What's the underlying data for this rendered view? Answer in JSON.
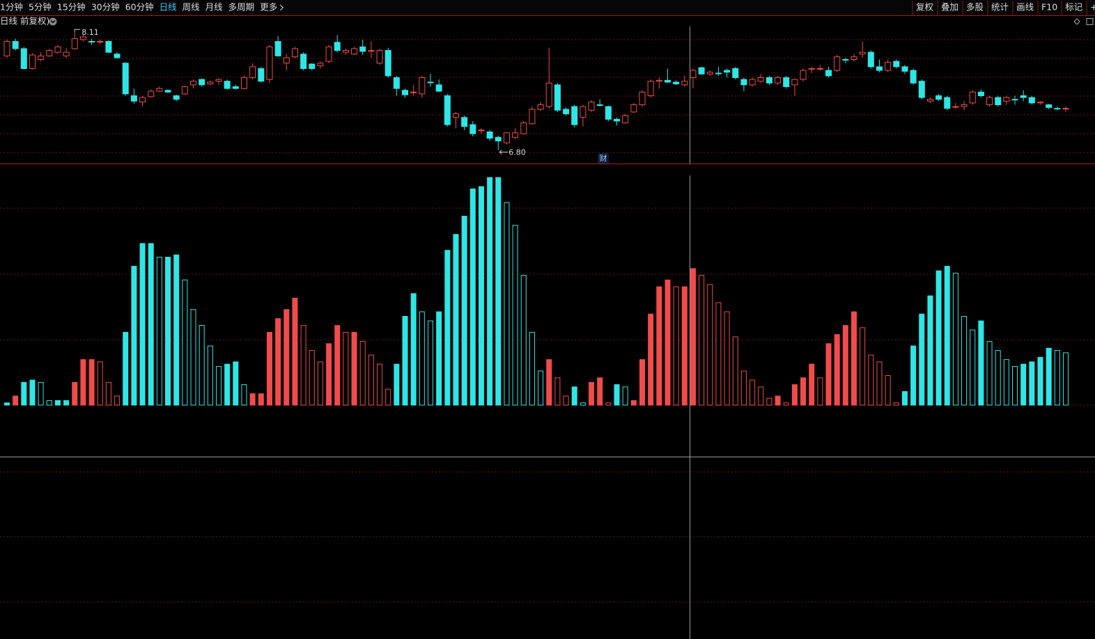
{
  "toolbar": {
    "left": [
      "1分钟",
      "5分钟",
      "15分钟",
      "30分钟",
      "60分钟",
      "日线",
      "周线",
      "月线",
      "多周期",
      "更多"
    ],
    "right": [
      "复权",
      "叠加",
      "多股",
      "统计",
      "画线",
      "F10",
      "标记",
      "+自"
    ]
  },
  "subtitle": "日线 前复权)",
  "marker": "财",
  "chart_data": [
    {
      "type": "candlestick",
      "ylim": [
        6.65,
        8.15
      ],
      "high_label": "8.11",
      "low_label": "6.80",
      "color_up": "#f24b4b",
      "color_down": "#2ee6e6",
      "open": [
        7.84,
        8.0,
        7.92,
        7.7,
        7.8,
        7.84,
        7.88,
        7.84,
        7.92,
        8.02,
        8.0,
        8.0,
        8.0,
        7.86,
        7.76,
        7.4,
        7.33,
        7.39,
        7.45,
        7.46,
        7.4,
        7.42,
        7.52,
        7.58,
        7.53,
        7.56,
        7.56,
        7.5,
        7.48,
        7.6,
        7.7,
        7.58,
        8.0,
        7.76,
        7.83,
        7.86,
        7.75,
        7.73,
        7.78,
        7.99,
        7.88,
        7.86,
        7.94,
        7.89,
        7.76,
        7.9,
        7.6,
        7.46,
        7.44,
        7.42,
        7.55,
        7.52,
        7.4,
        7.16,
        7.16,
        7.08,
        7.02,
        7.0,
        6.94,
        6.88,
        6.94,
        6.98,
        7.09,
        7.25,
        7.28,
        7.52,
        7.25,
        7.28,
        7.16,
        7.24,
        7.3,
        7.28,
        7.14,
        7.1,
        7.22,
        7.3,
        7.4,
        7.56,
        7.57,
        7.55,
        7.52,
        7.6,
        7.71,
        7.64,
        7.65,
        7.68,
        7.7,
        7.58,
        7.52,
        7.56,
        7.6,
        7.54,
        7.6,
        7.52,
        7.58,
        7.69,
        7.7,
        7.68,
        7.68,
        7.8,
        7.8,
        7.86,
        7.88,
        7.72,
        7.68,
        7.78,
        7.72,
        7.68,
        7.56,
        7.34,
        7.4,
        7.38,
        7.28,
        7.28,
        7.32,
        7.44,
        7.3,
        7.38,
        7.34,
        7.36,
        7.4,
        7.38,
        7.32,
        7.3,
        7.26,
        7.26
      ],
      "close": [
        8.0,
        7.92,
        7.7,
        7.85,
        7.84,
        7.9,
        7.94,
        7.88,
        8.03,
        8.05,
        8.0,
        8.0,
        7.88,
        7.82,
        7.42,
        7.34,
        7.38,
        7.45,
        7.48,
        7.44,
        7.36,
        7.5,
        7.56,
        7.52,
        7.55,
        7.58,
        7.48,
        7.48,
        7.6,
        7.72,
        7.56,
        7.94,
        7.84,
        7.82,
        7.92,
        7.7,
        7.7,
        7.76,
        7.94,
        7.9,
        7.9,
        7.92,
        7.89,
        7.9,
        7.9,
        7.62,
        7.48,
        7.41,
        7.44,
        7.6,
        7.55,
        7.45,
        7.08,
        7.2,
        7.06,
        6.98,
        7.02,
        6.93,
        6.9,
        6.99,
        6.99,
        7.1,
        7.25,
        7.3,
        7.54,
        7.24,
        7.2,
        7.08,
        7.28,
        7.33,
        7.3,
        7.14,
        7.12,
        7.18,
        7.3,
        7.44,
        7.56,
        7.57,
        7.55,
        7.53,
        7.56,
        7.68,
        7.64,
        7.66,
        7.65,
        7.66,
        7.6,
        7.52,
        7.58,
        7.6,
        7.54,
        7.6,
        7.5,
        7.58,
        7.68,
        7.7,
        7.7,
        7.62,
        7.83,
        7.8,
        7.83,
        7.88,
        7.72,
        7.68,
        7.77,
        7.72,
        7.67,
        7.54,
        7.38,
        7.36,
        7.36,
        7.26,
        7.28,
        7.3,
        7.44,
        7.4,
        7.38,
        7.3,
        7.38,
        7.36,
        7.38,
        7.32,
        7.33,
        7.27,
        7.26,
        7.26
      ],
      "high": [
        8.02,
        8.03,
        7.94,
        7.87,
        7.88,
        7.92,
        7.96,
        7.93,
        8.11,
        8.08,
        8.03,
        8.02,
        8.01,
        7.88,
        7.77,
        7.48,
        7.4,
        7.47,
        7.5,
        7.47,
        7.41,
        7.51,
        7.58,
        7.59,
        7.57,
        7.59,
        7.58,
        7.52,
        7.62,
        7.76,
        7.72,
        7.96,
        8.06,
        7.86,
        7.94,
        7.88,
        7.76,
        7.78,
        7.96,
        8.07,
        7.92,
        7.94,
        8.02,
        8.0,
        7.92,
        7.93,
        7.62,
        7.48,
        7.52,
        7.62,
        7.64,
        7.58,
        7.42,
        7.22,
        7.18,
        7.12,
        7.04,
        7.02,
        6.96,
        7.0,
        7.04,
        7.12,
        7.28,
        7.33,
        7.93,
        7.54,
        7.27,
        7.3,
        7.3,
        7.35,
        7.36,
        7.29,
        7.16,
        7.2,
        7.32,
        7.46,
        7.58,
        7.6,
        7.7,
        7.57,
        7.62,
        7.7,
        7.72,
        7.68,
        7.72,
        7.7,
        7.72,
        7.6,
        7.6,
        7.64,
        7.62,
        7.62,
        7.62,
        7.59,
        7.7,
        7.72,
        7.74,
        7.72,
        7.85,
        7.82,
        7.86,
        8.0,
        7.9,
        7.8,
        7.8,
        7.8,
        7.74,
        7.7,
        7.58,
        7.38,
        7.42,
        7.4,
        7.32,
        7.34,
        7.46,
        7.47,
        7.4,
        7.4,
        7.4,
        7.4,
        7.46,
        7.4,
        7.34,
        7.31,
        7.28,
        7.28
      ],
      "low": [
        7.82,
        7.9,
        7.69,
        7.69,
        7.78,
        7.83,
        7.86,
        7.82,
        7.91,
        8.0,
        7.96,
        7.97,
        7.87,
        7.81,
        7.4,
        7.31,
        7.28,
        7.38,
        7.44,
        7.43,
        7.34,
        7.41,
        7.48,
        7.5,
        7.52,
        7.52,
        7.47,
        7.47,
        7.47,
        7.58,
        7.55,
        7.54,
        7.83,
        7.68,
        7.81,
        7.68,
        7.68,
        7.7,
        7.76,
        7.88,
        7.85,
        7.85,
        7.85,
        7.82,
        7.74,
        7.6,
        7.4,
        7.38,
        7.4,
        7.38,
        7.5,
        7.44,
        7.06,
        7.04,
        7.02,
        6.95,
        6.98,
        6.9,
        6.8,
        6.86,
        6.92,
        6.97,
        7.08,
        7.23,
        7.26,
        7.22,
        7.18,
        7.05,
        7.06,
        7.22,
        7.28,
        7.12,
        7.07,
        7.09,
        7.21,
        7.28,
        7.38,
        7.48,
        7.54,
        7.52,
        7.5,
        7.48,
        7.63,
        7.62,
        7.62,
        7.6,
        7.58,
        7.45,
        7.5,
        7.54,
        7.52,
        7.52,
        7.48,
        7.4,
        7.56,
        7.65,
        7.68,
        7.6,
        7.66,
        7.76,
        7.78,
        7.82,
        7.7,
        7.66,
        7.66,
        7.7,
        7.64,
        7.52,
        7.36,
        7.32,
        7.34,
        7.24,
        7.26,
        7.24,
        7.3,
        7.38,
        7.28,
        7.28,
        7.3,
        7.3,
        7.34,
        7.3,
        7.3,
        7.25,
        7.24,
        7.22
      ]
    },
    {
      "type": "bar",
      "ylim": [
        0,
        100
      ],
      "values": [
        1,
        4,
        10,
        11,
        10,
        2,
        2,
        2,
        10,
        20,
        20,
        19,
        10,
        4,
        32,
        61,
        71,
        71,
        65,
        65,
        66,
        55,
        42,
        35,
        26,
        17,
        18,
        19,
        9,
        5,
        5,
        32,
        38,
        42,
        47,
        35,
        24,
        19,
        27,
        35,
        32,
        32,
        28,
        22,
        18,
        7,
        18,
        39,
        49,
        41,
        37,
        41,
        68,
        75,
        83,
        95,
        96,
        100,
        100,
        89,
        79,
        57,
        32,
        15,
        20,
        12,
        4,
        8,
        1,
        10,
        12,
        1,
        9,
        8,
        2,
        20,
        40,
        52,
        55,
        52,
        52,
        60,
        57,
        53,
        45,
        41,
        30,
        15,
        11,
        8,
        3,
        4,
        1,
        9,
        12,
        18,
        12,
        27,
        31,
        35,
        41,
        34,
        22,
        19,
        13,
        1,
        6,
        26,
        40,
        48,
        59,
        61,
        58,
        39,
        33,
        37,
        28,
        24,
        20,
        17,
        18,
        19,
        21,
        25,
        24,
        23
      ],
      "colors": [
        "#2ee6e6",
        "#f24b4b",
        "#2ee6e6",
        "#2ee6e6",
        "#2ee6e6",
        "#2ee6e6",
        "#2ee6e6",
        "#2ee6e6",
        "#f24b4b",
        "#f24b4b",
        "#f24b4b",
        "#f24b4b",
        "#f24b4b",
        "#f24b4b",
        "#2ee6e6",
        "#2ee6e6",
        "#2ee6e6",
        "#2ee6e6",
        "#2ee6e6",
        "#2ee6e6",
        "#2ee6e6",
        "#2ee6e6",
        "#2ee6e6",
        "#2ee6e6",
        "#2ee6e6",
        "#2ee6e6",
        "#2ee6e6",
        "#2ee6e6",
        "#2ee6e6",
        "#f24b4b",
        "#f24b4b",
        "#f24b4b",
        "#f24b4b",
        "#f24b4b",
        "#f24b4b",
        "#f24b4b",
        "#f24b4b",
        "#f24b4b",
        "#f24b4b",
        "#f24b4b",
        "#f24b4b",
        "#f24b4b",
        "#f24b4b",
        "#f24b4b",
        "#f24b4b",
        "#f24b4b",
        "#2ee6e6",
        "#2ee6e6",
        "#2ee6e6",
        "#2ee6e6",
        "#2ee6e6",
        "#2ee6e6",
        "#2ee6e6",
        "#2ee6e6",
        "#2ee6e6",
        "#2ee6e6",
        "#2ee6e6",
        "#2ee6e6",
        "#2ee6e6",
        "#2ee6e6",
        "#2ee6e6",
        "#2ee6e6",
        "#2ee6e6",
        "#2ee6e6",
        "#f24b4b",
        "#f24b4b",
        "#f24b4b",
        "#2ee6e6",
        "#2ee6e6",
        "#f24b4b",
        "#f24b4b",
        "#f24b4b",
        "#2ee6e6",
        "#2ee6e6",
        "#f24b4b",
        "#f24b4b",
        "#f24b4b",
        "#f24b4b",
        "#f24b4b",
        "#f24b4b",
        "#f24b4b",
        "#f24b4b",
        "#f24b4b",
        "#f24b4b",
        "#f24b4b",
        "#f24b4b",
        "#f24b4b",
        "#f24b4b",
        "#f24b4b",
        "#f24b4b",
        "#f24b4b",
        "#f24b4b",
        "#f24b4b",
        "#f24b4b",
        "#f24b4b",
        "#f24b4b",
        "#f24b4b",
        "#f24b4b",
        "#f24b4b",
        "#f24b4b",
        "#f24b4b",
        "#f24b4b",
        "#f24b4b",
        "#f24b4b",
        "#f24b4b",
        "#f24b4b",
        "#2ee6e6",
        "#2ee6e6",
        "#2ee6e6",
        "#2ee6e6",
        "#2ee6e6",
        "#2ee6e6",
        "#2ee6e6",
        "#2ee6e6",
        "#2ee6e6",
        "#2ee6e6",
        "#2ee6e6",
        "#2ee6e6",
        "#2ee6e6",
        "#2ee6e6",
        "#2ee6e6",
        "#2ee6e6",
        "#2ee6e6",
        "#2ee6e6",
        "#2ee6e6",
        "#2ee6e6"
      ]
    }
  ]
}
